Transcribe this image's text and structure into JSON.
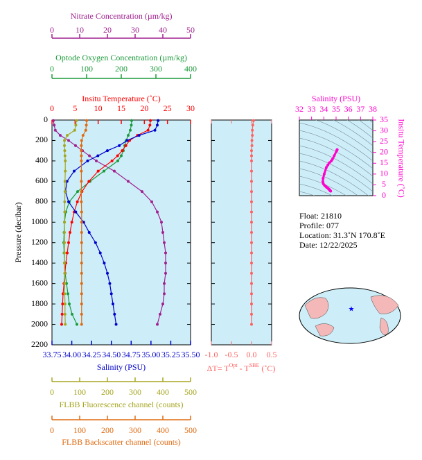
{
  "chart_data": [
    {
      "type": "profile",
      "y_label": "Pressure (decibar)",
      "y": [
        5,
        50,
        100,
        150,
        200,
        250,
        300,
        350,
        400,
        500,
        600,
        700,
        800,
        900,
        1000,
        1100,
        1200,
        1300,
        1400,
        1500,
        1600,
        1700,
        1800,
        1900,
        2000
      ],
      "ylim": [
        0,
        2200
      ],
      "yticks": [
        0,
        200,
        400,
        600,
        800,
        1000,
        1200,
        1400,
        1600,
        1800,
        2000,
        2200
      ],
      "series": [
        {
          "name": "Nitrate Concentration (µm/kg)",
          "color": "#a0208f",
          "xlim": [
            0,
            50
          ],
          "xticks": [
            0,
            10,
            20,
            30,
            40,
            50
          ],
          "values": [
            0.5,
            0.8,
            1.2,
            3,
            6,
            8.5,
            11,
            13.5,
            16,
            22.5,
            27.5,
            32.5,
            36,
            38,
            39.5,
            40,
            40.5,
            41,
            41,
            41,
            40.5,
            40.5,
            40,
            39,
            38
          ]
        },
        {
          "name": "Optode Oxygen Concentration (µm/kg)",
          "color": "#1a9a3a",
          "xlim": [
            0,
            400
          ],
          "xticks": [
            0,
            100,
            200,
            300,
            400
          ],
          "values": [
            230,
            229,
            226,
            220,
            214,
            210,
            206,
            200,
            190,
            150,
            110,
            74,
            50,
            40,
            36,
            35,
            34,
            35,
            36,
            38,
            42,
            46,
            50,
            58,
            72
          ]
        },
        {
          "name": "Insitu Temperature (˚C)",
          "color": "#ff0000",
          "xlim": [
            0,
            30
          ],
          "xticks": [
            0,
            5,
            10,
            15,
            20,
            25,
            30
          ],
          "values": [
            21.3,
            21.2,
            20.8,
            18.5,
            16.8,
            16,
            15.2,
            14.2,
            13,
            10,
            8,
            6.5,
            5.5,
            4.8,
            4.3,
            3.9,
            3.6,
            3.3,
            3,
            2.8,
            2.6,
            2.4,
            2.3,
            2.2,
            2.1
          ]
        },
        {
          "name": "Salinity (PSU)",
          "color": "#0000cc",
          "xlim": [
            33.75,
            35.5
          ],
          "xticks": [
            {
              "value": 33.75,
              "label": "33.75"
            },
            {
              "value": 34,
              "label": "34.00"
            },
            {
              "value": 34.25,
              "label": "34.25"
            },
            {
              "value": 34.5,
              "label": "34.50"
            },
            {
              "value": 34.75,
              "label": "34.75"
            },
            {
              "value": 35,
              "label": "35.00"
            },
            {
              "value": 35.25,
              "label": "35.25"
            },
            {
              "value": 35.5,
              "label": "35.50"
            }
          ],
          "values": [
            35.09,
            35.08,
            35.05,
            34.85,
            34.7,
            34.6,
            34.45,
            34.33,
            34.2,
            34.03,
            33.94,
            33.92,
            33.96,
            34.05,
            34.15,
            34.22,
            34.3,
            34.36,
            34.41,
            34.45,
            34.48,
            34.5,
            34.52,
            34.54,
            34.56
          ]
        },
        {
          "name": "FLBB Fluorescence channel (counts)",
          "color": "#a5a520",
          "xlim": [
            0,
            500
          ],
          "xticks": [
            0,
            100,
            200,
            300,
            400,
            500
          ],
          "values": [
            88,
            86,
            82,
            55,
            45,
            45,
            46,
            47,
            48,
            48,
            47,
            47,
            46,
            46,
            45,
            45,
            45,
            45,
            45,
            46,
            46,
            46,
            47,
            47,
            48
          ]
        },
        {
          "name": "FLBB Backscatter channel (counts)",
          "color": "#e06a10",
          "xlim": [
            0,
            500
          ],
          "xticks": [
            0,
            100,
            200,
            300,
            400,
            500
          ],
          "values": [
            125,
            124,
            122,
            112,
            107,
            106,
            106,
            106,
            106,
            106,
            106,
            106,
            106,
            107,
            107,
            107,
            107,
            107,
            107,
            107,
            107,
            107,
            107,
            107,
            107
          ]
        }
      ]
    },
    {
      "type": "delta",
      "x_label": [
        "ΔT= T",
        "Opt",
        " - T",
        "SBE",
        " (˚C)"
      ],
      "color": "#ff6060",
      "xlim": [
        -1.0,
        0.5
      ],
      "xticks": [
        {
          "value": -1.0,
          "label": "-1.0"
        },
        -0.5,
        {
          "value": 0.0,
          "label": "0.0"
        },
        0.5
      ],
      "values": [
        0.05,
        0.03,
        0.02,
        0.02,
        0.01,
        0.01,
        0.0,
        0.0,
        0.0,
        0.0,
        0.0,
        0.0,
        0.0,
        0.0,
        0.0,
        0.0,
        0.0,
        0.0,
        0.0,
        0.0,
        0.0,
        0.0,
        0.0,
        0.0,
        0.0
      ]
    },
    {
      "type": "ts",
      "x_label": "Salinity (PSU)",
      "y_label": "Insitu Temperature (˚C)",
      "color": "#ff00cc",
      "xlim": [
        32,
        38
      ],
      "xticks": [
        32,
        33,
        34,
        35,
        36,
        37,
        38
      ],
      "ylim": [
        0,
        35
      ],
      "yticks": [
        0,
        5,
        10,
        15,
        20,
        25,
        30,
        35
      ]
    }
  ],
  "info": [
    "Float:  21810",
    "Profile:  077",
    "Location:  31.3˚N  170.8˚E",
    "Date:  12/22/2025"
  ]
}
